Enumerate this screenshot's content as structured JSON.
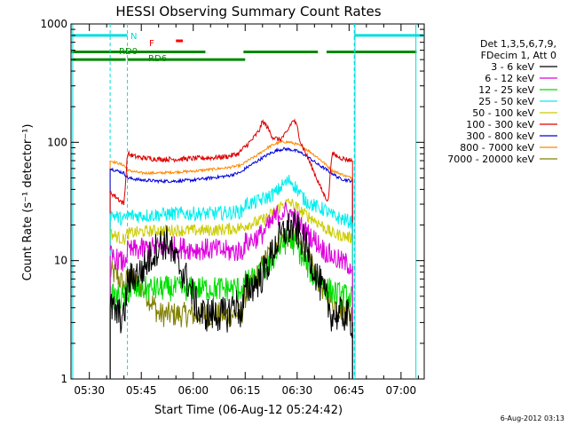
{
  "chart_data": {
    "type": "line",
    "title": "HESSI Observing Summary Count Rates",
    "xlabel": "Start Time (06-Aug-12 05:24:42)",
    "ylabel": "Count Rate (s⁻¹ detector⁻¹)",
    "yscale": "log",
    "ylim": [
      1,
      1000
    ],
    "x_unit": "minutes after 05:00 UT",
    "xlim": [
      24.7,
      126.7
    ],
    "x_ticks": [
      "05:30",
      "05:45",
      "06:00",
      "06:15",
      "06:30",
      "06:45",
      "07:00"
    ],
    "x_tick_values": [
      30,
      45,
      60,
      75,
      90,
      105,
      120
    ],
    "y_ticks": [
      "1",
      "10",
      "100",
      "1000"
    ],
    "y_tick_values": [
      1,
      10,
      100,
      1000
    ],
    "legend_header": [
      "Det 1,3,5,6,7,9,",
      "FDecim 1, Att 0"
    ],
    "legend_position": "right",
    "timestamp": "6-Aug-2012 03:13",
    "annotations": {
      "night": "N",
      "flare": "F",
      "rd0": "RD0",
      "rd6": "RD6"
    },
    "data_gaps": [
      [
        24.7,
        36.0
      ],
      [
        106.5,
        126.7
      ]
    ],
    "series": [
      {
        "name": "3 - 6 keV",
        "color": "#000000",
        "x": [
          36,
          40,
          41,
          43,
          45,
          47,
          50,
          53,
          54,
          56,
          58,
          60,
          62,
          64,
          66,
          68,
          70,
          72,
          74,
          75,
          78,
          80,
          82,
          84,
          86,
          88,
          90,
          92,
          94,
          96,
          98,
          100,
          102,
          104,
          106
        ],
        "y": [
          4.0,
          3.2,
          6.5,
          7.5,
          8.0,
          10.0,
          13.5,
          14.5,
          11.0,
          9.0,
          7.0,
          5.0,
          3.5,
          3.5,
          3.5,
          3.5,
          3.5,
          4.5,
          3.5,
          5.5,
          6.5,
          7.5,
          10.0,
          14.0,
          17.0,
          19.0,
          18.0,
          14.0,
          10.0,
          7.0,
          5.0,
          3.5,
          3.5,
          3.5,
          3.0
        ]
      },
      {
        "name": "6 - 12 keV",
        "color": "#dd00dd",
        "x": [
          36,
          40,
          41,
          45,
          50,
          55,
          60,
          65,
          70,
          74,
          75,
          78,
          80,
          82,
          84,
          86,
          88,
          90,
          92,
          94,
          96,
          98,
          100,
          102,
          104,
          106
        ],
        "y": [
          11.0,
          9.5,
          12.0,
          12.5,
          13.0,
          13.0,
          12.5,
          12.5,
          12.0,
          12.0,
          14.0,
          15.5,
          17.0,
          20.0,
          24.0,
          26.0,
          25.0,
          22.0,
          18.0,
          16.0,
          14.0,
          12.0,
          11.0,
          10.0,
          9.5,
          9.0
        ]
      },
      {
        "name": "12 - 25 keV",
        "color": "#00dd00",
        "x": [
          36,
          40,
          41,
          45,
          50,
          55,
          60,
          65,
          70,
          74,
          75,
          78,
          80,
          82,
          84,
          86,
          88,
          90,
          92,
          94,
          96,
          98,
          100,
          102,
          104,
          106
        ],
        "y": [
          5.0,
          4.8,
          5.5,
          5.8,
          5.8,
          5.8,
          5.8,
          5.8,
          5.8,
          5.8,
          6.5,
          7.0,
          8.0,
          9.5,
          11.5,
          14.0,
          15.0,
          13.0,
          10.0,
          8.0,
          7.0,
          6.0,
          5.5,
          5.2,
          5.0,
          4.8
        ]
      },
      {
        "name": "25 - 50 keV",
        "color": "#00eeee",
        "x": [
          36,
          40,
          41,
          45,
          50,
          55,
          60,
          65,
          70,
          74,
          75,
          78,
          80,
          82,
          84,
          86,
          88,
          90,
          92,
          94,
          96,
          98,
          100,
          102,
          104,
          106
        ],
        "y": [
          25.0,
          22.0,
          24.0,
          24.0,
          24.5,
          25.0,
          25.0,
          25.0,
          25.5,
          26.0,
          30.0,
          31.0,
          33.0,
          35.0,
          38.0,
          44.0,
          48.0,
          40.0,
          33.0,
          30.0,
          28.0,
          27.0,
          24.0,
          23.0,
          22.0,
          21.0
        ]
      },
      {
        "name": "50 - 100 keV",
        "color": "#cccc00",
        "x": [
          36,
          40,
          41,
          45,
          50,
          55,
          60,
          65,
          70,
          74,
          75,
          78,
          80,
          82,
          84,
          86,
          88,
          90,
          92,
          94,
          96,
          98,
          100,
          102,
          104,
          106
        ],
        "y": [
          17.0,
          15.0,
          17.0,
          17.5,
          18.0,
          18.0,
          18.0,
          18.0,
          18.5,
          19.0,
          20.0,
          21.0,
          22.0,
          24.0,
          27.0,
          30.0,
          31.0,
          28.0,
          25.0,
          23.0,
          21.0,
          19.0,
          17.0,
          16.5,
          16.0,
          15.5
        ]
      },
      {
        "name": "100 - 300 keV",
        "color": "#dd0000",
        "x": [
          36,
          38,
          40,
          41,
          43,
          45,
          50,
          55,
          60,
          65,
          70,
          73,
          74,
          75,
          77,
          79,
          80,
          81,
          83,
          85,
          87,
          88,
          89,
          90,
          91,
          93,
          95,
          97,
          98,
          99,
          100,
          102,
          104,
          106
        ],
        "y": [
          38.0,
          34.0,
          30.0,
          80.0,
          76.0,
          74.0,
          72.0,
          72.0,
          73.0,
          74.0,
          76.0,
          80.0,
          86.0,
          92.0,
          105.0,
          125.0,
          150.0,
          140.0,
          110.0,
          105.0,
          120.0,
          140.0,
          155.0,
          135.0,
          100.0,
          75.0,
          55.0,
          40.0,
          35.0,
          32.0,
          80.0,
          75.0,
          72.0,
          70.0
        ]
      },
      {
        "name": "300 - 800 keV",
        "color": "#0000dd",
        "x": [
          36,
          40,
          41,
          45,
          50,
          55,
          60,
          65,
          70,
          74,
          75,
          78,
          80,
          82,
          84,
          86,
          88,
          90,
          92,
          94,
          96,
          98,
          99,
          100,
          102,
          104,
          106
        ],
        "y": [
          60.0,
          55.0,
          50.0,
          48.0,
          47.0,
          47.0,
          48.0,
          50.0,
          52.0,
          56.0,
          60.0,
          68.0,
          74.0,
          80.0,
          85.0,
          88.0,
          87.0,
          84.0,
          79.0,
          72.0,
          65.0,
          60.0,
          57.0,
          55.0,
          50.0,
          48.0,
          47.0
        ]
      },
      {
        "name": "800 - 7000 keV",
        "color": "#ff8800",
        "x": [
          36,
          40,
          41,
          45,
          50,
          55,
          60,
          65,
          70,
          74,
          75,
          78,
          80,
          82,
          84,
          86,
          88,
          90,
          92,
          94,
          96,
          98,
          99,
          100,
          102,
          104,
          106
        ],
        "y": [
          70.0,
          64.0,
          58.0,
          55.0,
          55.0,
          56.0,
          57.0,
          59.0,
          61.0,
          64.0,
          68.0,
          76.0,
          84.0,
          92.0,
          98.0,
          101.0,
          100.0,
          96.0,
          90.0,
          82.0,
          74.0,
          66.0,
          62.0,
          58.0,
          55.0,
          52.0,
          50.0
        ]
      },
      {
        "name": "7000 - 20000 keV",
        "color": "#808000",
        "x": [
          36,
          38,
          40,
          41,
          43,
          45,
          47,
          49,
          50,
          55,
          60,
          65,
          70,
          74,
          75,
          78,
          80,
          82,
          84,
          86,
          88,
          90,
          92,
          94,
          96,
          98,
          100,
          102,
          104,
          106
        ],
        "y": [
          8.0,
          7.5,
          6.0,
          7.0,
          6.5,
          6.0,
          5.0,
          4.0,
          3.5,
          3.5,
          3.5,
          3.5,
          3.5,
          3.5,
          5.0,
          7.0,
          9.0,
          11.5,
          14.0,
          15.5,
          16.0,
          15.0,
          12.0,
          9.0,
          7.0,
          5.5,
          4.5,
          4.0,
          3.6,
          3.5
        ]
      }
    ],
    "flags": [
      {
        "label": "N",
        "color": "#00dddd",
        "y": 800,
        "spans": [
          [
            24.7,
            41.0
          ],
          [
            106.5,
            126.7
          ]
        ]
      },
      {
        "label": "F",
        "color": "#ff0000",
        "y": 720,
        "spans": [
          [
            55.0,
            57.0
          ]
        ]
      },
      {
        "label": "RD0",
        "color": "#008800",
        "y": 580,
        "spans": [
          [
            24.7,
            63.5
          ],
          [
            74.5,
            96.0
          ],
          [
            98.5,
            124.5
          ]
        ]
      },
      {
        "label": "RD6",
        "color": "#008800",
        "y": 500,
        "spans": [
          [
            24.7,
            40.5
          ],
          [
            41.0,
            75.0
          ]
        ]
      }
    ],
    "vlines_dashed": [
      36.0,
      41.0,
      106.5
    ],
    "vlines_solid": [
      25.2,
      106.7,
      124.3
    ]
  }
}
